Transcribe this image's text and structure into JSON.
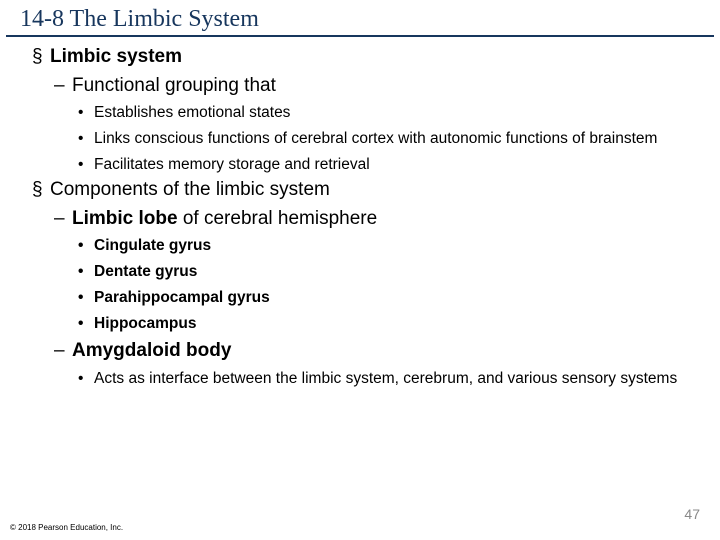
{
  "colors": {
    "title_color": "#17365d",
    "title_border": "#17365d",
    "pagenum_color": "#898989",
    "background": "#ffffff",
    "text": "#000000"
  },
  "typography": {
    "title_font": "Times New Roman",
    "body_font": "Arial",
    "title_fontsize": 24,
    "l1_fontsize": 19,
    "l2_fontsize": 19,
    "l3_fontsize": 15.5,
    "footer_fontsize": 8,
    "pagenum_fontsize": 14
  },
  "title": "14-8 The Limbic System",
  "sections": [
    {
      "label": "Limbic system",
      "subs": [
        {
          "label": "Functional grouping that",
          "bold": false,
          "subbold": false,
          "points": [
            "Establishes emotional states",
            "Links conscious functions of cerebral cortex with autonomic functions of brainstem",
            "Facilitates memory storage and retrieval"
          ]
        }
      ]
    },
    {
      "label": "Components of the limbic system",
      "subs": [
        {
          "label_prefix": "Limbic lobe",
          "label_suffix": " of cerebral hemisphere",
          "bold": true,
          "subbold": true,
          "points": [
            "Cingulate gyrus",
            "Dentate gyrus",
            "Parahippocampal gyrus",
            "Hippocampus"
          ]
        },
        {
          "label": "Amygdaloid body",
          "bold": true,
          "subbold": false,
          "fullbold": true,
          "points": [
            "Acts as interface between the limbic system, cerebrum, and various sensory systems"
          ]
        }
      ]
    }
  ],
  "footer": "© 2018 Pearson Education, Inc.",
  "pagenum": "47"
}
